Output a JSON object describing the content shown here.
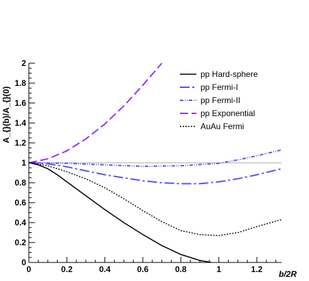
{
  "chart_data": {
    "type": "line",
    "title": "",
    "xlabel": "b/2R",
    "ylabel": "A_{}(b)/A_{}(0)",
    "xlim": [
      0,
      1.33
    ],
    "ylim": [
      0,
      2
    ],
    "x_ticks": [
      "0",
      "0.2",
      "0.4",
      "0.6",
      "0.8",
      "1",
      "1.2"
    ],
    "y_ticks": [
      "0",
      "0.2",
      "0.4",
      "0.6",
      "0.8",
      "1",
      "1.2",
      "1.4",
      "1.6",
      "1.8",
      "2"
    ],
    "reference_line": {
      "y": 1,
      "color": "#bbbbbb"
    },
    "grid": false,
    "legend_position": "top-right",
    "series": [
      {
        "name": "pp Hard-sphere",
        "color": "#000000",
        "dash": "solid",
        "x": [
          0,
          0.05,
          0.1,
          0.15,
          0.2,
          0.3,
          0.4,
          0.5,
          0.6,
          0.7,
          0.8,
          0.9,
          0.96
        ],
        "y": [
          1.0,
          0.98,
          0.94,
          0.88,
          0.81,
          0.67,
          0.53,
          0.4,
          0.28,
          0.17,
          0.08,
          0.02,
          0.0
        ]
      },
      {
        "name": "pp Fermi-I",
        "color": "#5555ee",
        "dash": "longdash",
        "x": [
          0,
          0.1,
          0.2,
          0.3,
          0.4,
          0.5,
          0.6,
          0.7,
          0.8,
          0.9,
          1.0,
          1.1,
          1.2,
          1.33
        ],
        "y": [
          1.0,
          0.99,
          0.96,
          0.92,
          0.88,
          0.85,
          0.82,
          0.8,
          0.79,
          0.79,
          0.81,
          0.84,
          0.88,
          0.94
        ]
      },
      {
        "name": "pp Fermi-II",
        "color": "#5555ee",
        "dash": "dashdotdot",
        "x": [
          0,
          0.2,
          0.4,
          0.6,
          0.8,
          1.0,
          1.1,
          1.2,
          1.33
        ],
        "y": [
          1.0,
          0.995,
          0.98,
          0.965,
          0.97,
          0.995,
          1.03,
          1.07,
          1.13
        ]
      },
      {
        "name": "pp Exponential",
        "color": "#9933ee",
        "dash": "dash",
        "x": [
          0,
          0.1,
          0.2,
          0.3,
          0.4,
          0.5,
          0.6,
          0.7
        ],
        "y": [
          1.0,
          1.04,
          1.12,
          1.24,
          1.39,
          1.57,
          1.78,
          2.0
        ]
      },
      {
        "name": "AuAu Fermi",
        "color": "#000000",
        "dash": "dot",
        "x": [
          0,
          0.1,
          0.2,
          0.3,
          0.4,
          0.5,
          0.6,
          0.7,
          0.8,
          0.9,
          1.0,
          1.1,
          1.2,
          1.33
        ],
        "y": [
          1.0,
          0.97,
          0.91,
          0.84,
          0.75,
          0.64,
          0.52,
          0.41,
          0.32,
          0.28,
          0.27,
          0.3,
          0.36,
          0.43
        ]
      }
    ]
  }
}
